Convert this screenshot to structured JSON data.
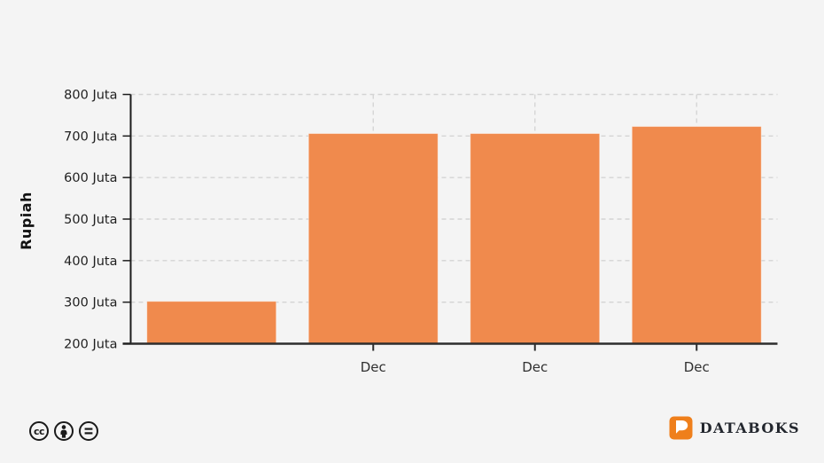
{
  "chart_data": {
    "type": "bar",
    "title": "",
    "ylabel": "Rupiah",
    "xlabel": "",
    "categories": [
      "",
      "Dec",
      "Dec",
      "Dec"
    ],
    "values": [
      302,
      706,
      706,
      723
    ],
    "y_unit": "Juta",
    "y_ticks": [
      200,
      300,
      400,
      500,
      600,
      700,
      800
    ],
    "ylim": [
      200,
      800
    ],
    "grid": "dashed horizontal at each tick, dashed vertical at labeled categories",
    "legend": "none",
    "bar_color": "#F08A4D"
  },
  "footer": {
    "license": {
      "icons": [
        "cc-icon",
        "attribution-icon",
        "no-derivatives-icon"
      ],
      "cc_glyph": "cc"
    },
    "brand": {
      "name": "DATABOKS",
      "logo_icon": "databoks-d-speech-bubble-icon",
      "logo_color": "#EF7F1B"
    }
  },
  "colors": {
    "bg": "#f4f4f4",
    "bar": "#F08A4D",
    "axis": "#2d2d2d",
    "grid": "#d4d4d4",
    "text": "#1f1f1f",
    "brand": "#EF7F1B"
  }
}
